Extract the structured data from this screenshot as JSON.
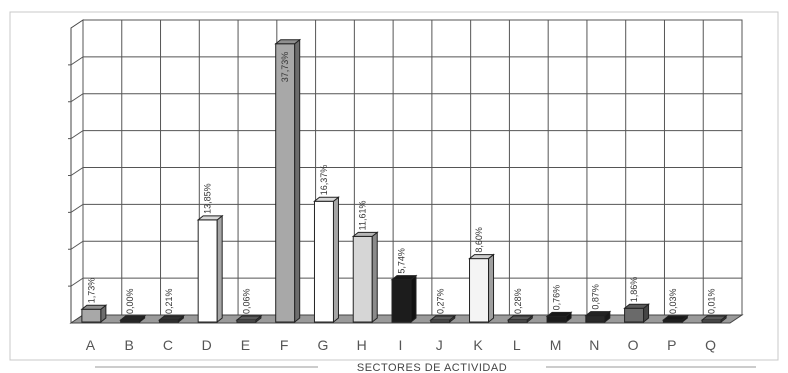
{
  "chart_data": {
    "type": "bar",
    "title": "",
    "xlabel": "SECTORES DE ACTIVIDAD",
    "ylabel": "",
    "ylim": [
      0,
      40
    ],
    "grid": true,
    "categories": [
      "A",
      "B",
      "C",
      "D",
      "E",
      "F",
      "G",
      "H",
      "I",
      "J",
      "K",
      "L",
      "M",
      "N",
      "O",
      "P",
      "Q"
    ],
    "values": [
      1.73,
      0.0,
      0.21,
      13.85,
      0.06,
      37.73,
      16.37,
      11.61,
      5.74,
      0.27,
      8.6,
      0.28,
      0.76,
      0.87,
      1.86,
      0.03,
      0.01
    ],
    "labels": [
      "1,73%",
      "0,00%",
      "0,21%",
      "13,85%",
      "0,06%",
      "37,73%",
      "16,37%",
      "11,61%",
      "5,74%",
      "0,27%",
      "8,60%",
      "0,28%",
      "0,76%",
      "0,87%",
      "1,86%",
      "0,03%",
      "0,01%"
    ],
    "colors": [
      "#a8a8a8",
      "#2a2a2a",
      "#3a3a3a",
      "#ffffff",
      "#6a6a6a",
      "#a8a8a8",
      "#ffffff",
      "#d6d6d6",
      "#1c1c1c",
      "#6a6a6a",
      "#f4f4f4",
      "#6a6a6a",
      "#1c1c1c",
      "#2a2a2a",
      "#6a6a6a",
      "#1c1c1c",
      "#6a6a6a"
    ]
  }
}
